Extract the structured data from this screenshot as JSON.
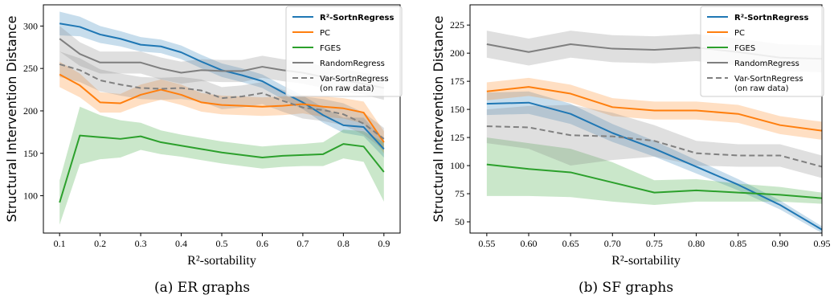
{
  "figure": {
    "captions": [
      "(a) ER graphs",
      "(b) SF graphs"
    ]
  },
  "chart_data": [
    {
      "type": "line",
      "panel": "(a) ER graphs",
      "xlabel": "R²-sortability",
      "ylabel": "Structural Intervention Distance",
      "xlim": [
        0.06,
        0.94
      ],
      "ylim": [
        56,
        325
      ],
      "xticks": [
        0.1,
        0.2,
        0.3,
        0.4,
        0.5,
        0.6,
        0.7,
        0.8,
        0.9
      ],
      "xtick_labels": [
        "0.1",
        "0.2",
        "0.3",
        "0.4",
        "0.5",
        "0.6",
        "0.7",
        "0.8",
        "0.9"
      ],
      "yticks": [
        100,
        150,
        200,
        250,
        300
      ],
      "ytick_labels": [
        "100",
        "150",
        "200",
        "250",
        "300"
      ],
      "grid": false,
      "legend": "top-right",
      "x": [
        0.1,
        0.15,
        0.2,
        0.25,
        0.3,
        0.35,
        0.4,
        0.45,
        0.5,
        0.55,
        0.6,
        0.65,
        0.7,
        0.75,
        0.8,
        0.85,
        0.9
      ],
      "series": [
        {
          "name": "R²-SortnRegress",
          "color": "#1f77b4",
          "width": 2,
          "dash": "",
          "values": [
            303,
            299,
            290,
            285,
            278,
            276,
            269,
            258,
            248,
            242,
            235,
            222,
            210,
            195,
            183,
            181,
            155
          ],
          "band": [
            [
              289,
              317
            ],
            [
              288,
              311
            ],
            [
              280,
              300
            ],
            [
              276,
              294
            ],
            [
              270,
              287
            ],
            [
              268,
              284
            ],
            [
              261,
              277
            ],
            [
              250,
              266
            ],
            [
              240,
              256
            ],
            [
              234,
              250
            ],
            [
              227,
              243
            ],
            [
              214,
              230
            ],
            [
              202,
              218
            ],
            [
              186,
              204
            ],
            [
              174,
              192
            ],
            [
              170,
              192
            ],
            [
              145,
              165
            ]
          ]
        },
        {
          "name": "PC",
          "color": "#ff7f0e",
          "width": 2,
          "dash": "",
          "values": [
            243,
            230,
            210,
            209,
            219,
            225,
            219,
            210,
            207,
            206,
            205,
            206,
            208,
            205,
            203,
            198,
            163
          ],
          "band": [
            [
              228,
              258
            ],
            [
              216,
              244
            ],
            [
              198,
              222
            ],
            [
              198,
              220
            ],
            [
              207,
              231
            ],
            [
              213,
              237
            ],
            [
              207,
              231
            ],
            [
              199,
              221
            ],
            [
              196,
              218
            ],
            [
              195,
              217
            ],
            [
              194,
              216
            ],
            [
              195,
              217
            ],
            [
              197,
              219
            ],
            [
              193,
              217
            ],
            [
              191,
              215
            ],
            [
              185,
              211
            ],
            [
              150,
              176
            ]
          ]
        },
        {
          "name": "FGES",
          "color": "#2ca02c",
          "width": 2,
          "dash": "",
          "values": [
            92,
            171,
            169,
            167,
            170,
            163,
            159,
            155,
            151,
            148,
            145,
            147,
            148,
            149,
            161,
            158,
            128
          ],
          "band": [
            [
              66,
              118
            ],
            [
              137,
              205
            ],
            [
              143,
              195
            ],
            [
              145,
              189
            ],
            [
              154,
              186
            ],
            [
              149,
              177
            ],
            [
              146,
              172
            ],
            [
              142,
              168
            ],
            [
              138,
              164
            ],
            [
              135,
              161
            ],
            [
              132,
              158
            ],
            [
              134,
              160
            ],
            [
              135,
              161
            ],
            [
              135,
              163
            ],
            [
              144,
              178
            ],
            [
              140,
              176
            ],
            [
              93,
              163
            ]
          ]
        },
        {
          "name": "RandomRegress",
          "color": "#7f7f7f",
          "width": 2,
          "dash": "",
          "values": [
            285,
            267,
            257,
            257,
            257,
            250,
            245,
            248,
            247,
            247,
            252,
            248,
            245,
            240,
            236,
            232,
            227
          ],
          "band": [
            [
              270,
              300
            ],
            [
              253,
              281
            ],
            [
              244,
              270
            ],
            [
              244,
              270
            ],
            [
              244,
              270
            ],
            [
              237,
              263
            ],
            [
              232,
              258
            ],
            [
              235,
              261
            ],
            [
              234,
              260
            ],
            [
              234,
              260
            ],
            [
              239,
              265
            ],
            [
              235,
              261
            ],
            [
              232,
              258
            ],
            [
              227,
              253
            ],
            [
              223,
              249
            ],
            [
              219,
              245
            ],
            [
              213,
              241
            ]
          ]
        },
        {
          "name": "Var-SortnRegress\n(on raw data)",
          "color": "#808080",
          "width": 2,
          "dash": "7,4",
          "values": [
            255,
            248,
            236,
            231,
            227,
            226,
            227,
            224,
            215,
            217,
            221,
            212,
            204,
            201,
            196,
            185,
            167
          ],
          "band": [
            [
              240,
              270
            ],
            [
              234,
              262
            ],
            [
              223,
              249
            ],
            [
              218,
              244
            ],
            [
              214,
              240
            ],
            [
              213,
              239
            ],
            [
              214,
              240
            ],
            [
              211,
              237
            ],
            [
              202,
              228
            ],
            [
              204,
              230
            ],
            [
              208,
              234
            ],
            [
              199,
              225
            ],
            [
              191,
              217
            ],
            [
              188,
              214
            ],
            [
              183,
              209
            ],
            [
              172,
              198
            ],
            [
              154,
              180
            ]
          ]
        }
      ]
    },
    {
      "type": "line",
      "panel": "(b) SF graphs",
      "xlabel": "R²-sortability",
      "ylabel": "Structural Intervention Distance",
      "xlim": [
        0.53,
        0.95
      ],
      "ylim": [
        40,
        243
      ],
      "xticks": [
        0.55,
        0.6,
        0.65,
        0.7,
        0.75,
        0.8,
        0.85,
        0.9,
        0.95
      ],
      "xtick_labels": [
        "0.55",
        "0.60",
        "0.65",
        "0.70",
        "0.75",
        "0.80",
        "0.85",
        "0.90",
        "0.95"
      ],
      "yticks": [
        50,
        75,
        100,
        125,
        150,
        175,
        200,
        225
      ],
      "ytick_labels": [
        "50",
        "75",
        "100",
        "125",
        "150",
        "175",
        "200",
        "225"
      ],
      "grid": false,
      "legend": "top-right",
      "x": [
        0.55,
        0.6,
        0.65,
        0.7,
        0.75,
        0.8,
        0.85,
        0.9,
        0.95
      ],
      "series": [
        {
          "name": "R²-SortnRegress",
          "color": "#1f77b4",
          "width": 2,
          "dash": "",
          "values": [
            155,
            156,
            146,
            129,
            115,
            99,
            83,
            65,
            43
          ],
          "band": [
            [
              145,
              165
            ],
            [
              146,
              166
            ],
            [
              137,
              155
            ],
            [
              121,
              137
            ],
            [
              108,
              122
            ],
            [
              93,
              105
            ],
            [
              78,
              88
            ],
            [
              61,
              69
            ],
            [
              40,
              46
            ]
          ]
        },
        {
          "name": "PC",
          "color": "#ff7f0e",
          "width": 2,
          "dash": "",
          "values": [
            166,
            170,
            164,
            152,
            149,
            149,
            146,
            136,
            131
          ],
          "band": [
            [
              158,
              174
            ],
            [
              162,
              178
            ],
            [
              156,
              172
            ],
            [
              144,
              160
            ],
            [
              141,
              157
            ],
            [
              141,
              157
            ],
            [
              138,
              154
            ],
            [
              128,
              144
            ],
            [
              123,
              139
            ]
          ]
        },
        {
          "name": "FGES",
          "color": "#2ca02c",
          "width": 2,
          "dash": "",
          "values": [
            101,
            97,
            94,
            85,
            76,
            78,
            76,
            74,
            71
          ],
          "band": [
            [
              73,
              125
            ],
            [
              73,
              120
            ],
            [
              72,
              115
            ],
            [
              68,
              103
            ],
            [
              65,
              87
            ],
            [
              68,
              88
            ],
            [
              68,
              84
            ],
            [
              68,
              81
            ],
            [
              66,
              76
            ]
          ]
        },
        {
          "name": "RandomRegress",
          "color": "#7f7f7f",
          "width": 2,
          "dash": "",
          "values": [
            208,
            201,
            208,
            204,
            203,
            205,
            201,
            196,
            195
          ],
          "band": [
            [
              196,
              220
            ],
            [
              189,
              213
            ],
            [
              196,
              220
            ],
            [
              192,
              216
            ],
            [
              191,
              215
            ],
            [
              193,
              217
            ],
            [
              189,
              213
            ],
            [
              184,
              208
            ],
            [
              183,
              207
            ]
          ]
        },
        {
          "name": "Var-SortnRegress\n(on raw data)",
          "color": "#808080",
          "width": 2,
          "dash": "7,4",
          "values": [
            135,
            134,
            127,
            126,
            122,
            111,
            109,
            109,
            99
          ],
          "band": [
            [
              120,
              150
            ],
            [
              115,
              153
            ],
            [
              100,
              154
            ],
            [
              105,
              147
            ],
            [
              108,
              136
            ],
            [
              100,
              122
            ],
            [
              99,
              119
            ],
            [
              99,
              119
            ],
            [
              89,
              109
            ]
          ]
        }
      ]
    }
  ]
}
